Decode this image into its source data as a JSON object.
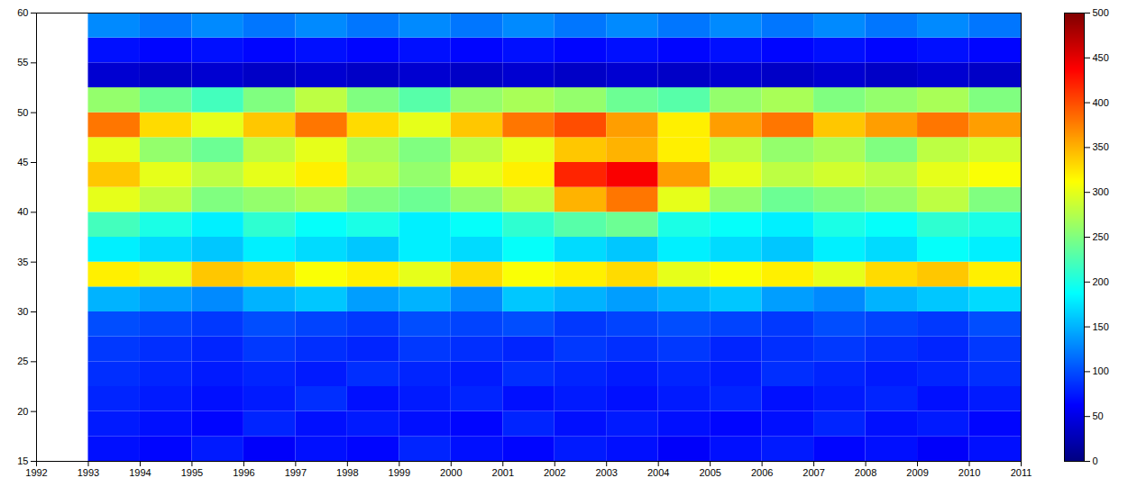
{
  "chart_data": {
    "type": "heatmap",
    "x_bins": [
      1993,
      1994,
      1995,
      1996,
      1997,
      1998,
      1999,
      2000,
      2001,
      2002,
      2003,
      2004,
      2005,
      2006,
      2007,
      2008,
      2009,
      2010,
      2011
    ],
    "y_bins": [
      15,
      17.5,
      20,
      22.5,
      25,
      27.5,
      30,
      32.5,
      35,
      37.5,
      40,
      42.5,
      45,
      47.5,
      50,
      52.5,
      55,
      57.5,
      60
    ],
    "values": [
      [
        70,
        65,
        75,
        60,
        70,
        65,
        80,
        70,
        65,
        75,
        70,
        60,
        70,
        75,
        65,
        70,
        60,
        70
      ],
      [
        75,
        70,
        65,
        80,
        70,
        75,
        70,
        65,
        80,
        70,
        75,
        70,
        65,
        70,
        80,
        70,
        75,
        65
      ],
      [
        80,
        75,
        70,
        75,
        85,
        70,
        75,
        80,
        70,
        75,
        70,
        75,
        80,
        70,
        75,
        80,
        70,
        75
      ],
      [
        85,
        80,
        75,
        80,
        75,
        85,
        80,
        75,
        85,
        80,
        75,
        80,
        75,
        85,
        80,
        75,
        80,
        85
      ],
      [
        90,
        85,
        80,
        90,
        85,
        80,
        90,
        85,
        80,
        90,
        85,
        90,
        80,
        85,
        90,
        85,
        80,
        90
      ],
      [
        100,
        95,
        90,
        100,
        95,
        90,
        100,
        95,
        100,
        90,
        95,
        100,
        95,
        90,
        100,
        95,
        90,
        100
      ],
      [
        150,
        140,
        130,
        150,
        160,
        140,
        150,
        130,
        160,
        150,
        140,
        150,
        160,
        140,
        130,
        150,
        160,
        170
      ],
      [
        320,
        300,
        340,
        330,
        310,
        320,
        300,
        330,
        310,
        320,
        330,
        300,
        310,
        320,
        300,
        330,
        340,
        320
      ],
      [
        180,
        170,
        160,
        180,
        170,
        160,
        180,
        170,
        190,
        170,
        160,
        180,
        170,
        160,
        180,
        170,
        190,
        180
      ],
      [
        220,
        200,
        180,
        210,
        190,
        200,
        180,
        190,
        210,
        230,
        240,
        200,
        190,
        180,
        200,
        190,
        210,
        200
      ],
      [
        300,
        280,
        250,
        260,
        270,
        250,
        240,
        260,
        280,
        350,
        380,
        300,
        260,
        240,
        250,
        260,
        280,
        250
      ],
      [
        340,
        300,
        280,
        300,
        320,
        280,
        260,
        300,
        320,
        420,
        440,
        360,
        300,
        280,
        290,
        280,
        300,
        310
      ],
      [
        300,
        260,
        240,
        280,
        300,
        270,
        250,
        280,
        300,
        340,
        350,
        320,
        280,
        260,
        270,
        250,
        280,
        290
      ],
      [
        380,
        330,
        300,
        340,
        380,
        330,
        300,
        340,
        380,
        400,
        360,
        320,
        360,
        380,
        340,
        360,
        380,
        360
      ],
      [
        260,
        240,
        220,
        250,
        280,
        250,
        230,
        260,
        270,
        260,
        240,
        230,
        260,
        270,
        250,
        260,
        270,
        250
      ],
      [
        40,
        35,
        40,
        35,
        40,
        35,
        40,
        35,
        40,
        35,
        40,
        35,
        40,
        35,
        40,
        35,
        40,
        35
      ],
      [
        70,
        65,
        70,
        65,
        70,
        65,
        70,
        65,
        70,
        65,
        70,
        65,
        70,
        65,
        70,
        65,
        70,
        65
      ],
      [
        130,
        120,
        130,
        120,
        130,
        120,
        130,
        120,
        130,
        120,
        130,
        120,
        130,
        120,
        130,
        120,
        130,
        120
      ]
    ],
    "xlim": [
      1992,
      2011
    ],
    "xticks": [
      1992,
      1993,
      1994,
      1995,
      1996,
      1997,
      1998,
      1999,
      2000,
      2001,
      2002,
      2003,
      2004,
      2005,
      2006,
      2007,
      2008,
      2009,
      2010,
      2011
    ],
    "ylim": [
      15,
      60
    ],
    "yticks": [
      15,
      20,
      25,
      30,
      35,
      40,
      45,
      50,
      55,
      60
    ],
    "colorbar": {
      "range": [
        0,
        500
      ],
      "ticks": [
        0,
        50,
        100,
        150,
        200,
        250,
        300,
        350,
        400,
        450,
        500
      ]
    }
  }
}
